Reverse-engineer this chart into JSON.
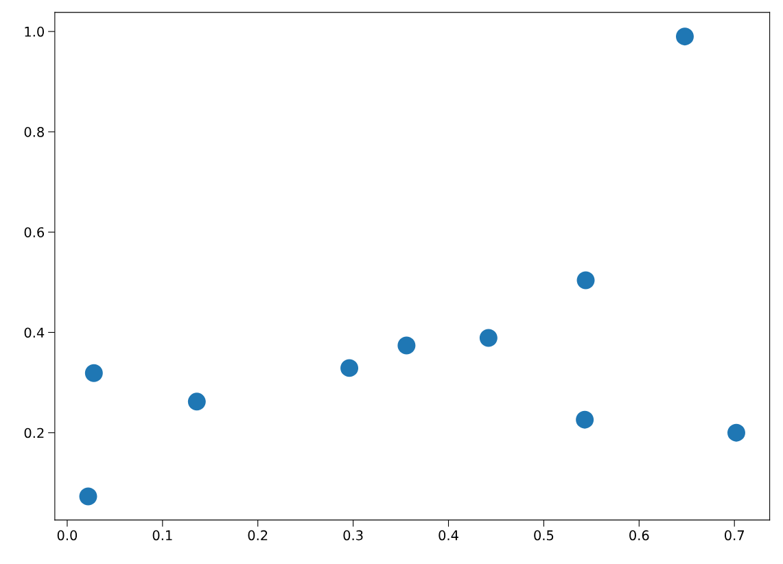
{
  "chart_data": {
    "type": "scatter",
    "x": [
      0.022,
      0.028,
      0.136,
      0.296,
      0.356,
      0.442,
      0.544,
      0.543,
      0.648,
      0.702
    ],
    "values": [
      0.073,
      0.319,
      0.262,
      0.329,
      0.374,
      0.389,
      0.504,
      0.226,
      0.99,
      0.2
    ],
    "color": "#1f77b4",
    "marker": "circle",
    "xlim": [
      -0.013,
      0.737
    ],
    "ylim": [
      0.026,
      1.038
    ],
    "xticks": [
      {
        "value": 0.0,
        "label": "0.0"
      },
      0.1,
      0.2,
      0.3,
      0.4,
      0.5,
      0.6,
      0.7
    ],
    "yticks": [
      0.2,
      0.4,
      0.6,
      0.8,
      {
        "value": 1.0,
        "label": "1.0"
      }
    ],
    "grid": false,
    "legend": false
  }
}
